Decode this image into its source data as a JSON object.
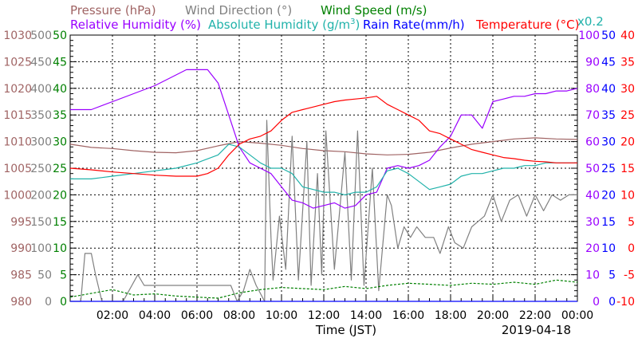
{
  "chart_data": {
    "type": "line",
    "date": "2019-04-18",
    "xlabel": "Time (JST)",
    "x_ticks": [
      "02:00",
      "04:00",
      "06:00",
      "08:00",
      "10:00",
      "12:00",
      "14:00",
      "16:00",
      "18:00",
      "20:00",
      "22:00",
      "00:00"
    ],
    "x_range_hours": [
      0,
      24
    ],
    "scale_note": "x0.2",
    "legend": {
      "pressure": "Pressure (hPa)",
      "wind_direction": "Wind Direction (°)",
      "wind_speed": "Wind Speed (m/s)",
      "relative_humidity": "Relative Humidity (%)",
      "absolute_humidity_prefix": "Absolute Humidity (g/m",
      "absolute_humidity_sup": "3",
      "absolute_humidity_suffix": ")",
      "rain_rate": "Rain Rate(mm/h)",
      "temperature": "Temperature (°C)"
    },
    "axes": {
      "pressure": {
        "color": "#a06464",
        "ticks": [
          "980",
          "985",
          "990",
          "995",
          "1000",
          "1005",
          "1010",
          "1015",
          "1020",
          "1025",
          "1030"
        ],
        "range": [
          980,
          1030
        ]
      },
      "wind_direction": {
        "color": "#808080",
        "ticks": [
          "0",
          "50",
          "100",
          "150",
          "200",
          "250",
          "300",
          "350",
          "400",
          "450",
          "500"
        ],
        "range": [
          0,
          500
        ]
      },
      "wind_speed": {
        "color": "#008000",
        "ticks": [
          "0",
          "5",
          "10",
          "15",
          "20",
          "25",
          "30",
          "35",
          "40",
          "45",
          "50"
        ],
        "range": [
          0,
          50
        ]
      },
      "relative_humidity": {
        "color": "#9a00ff",
        "ticks": [
          "0",
          "10",
          "20",
          "30",
          "40",
          "50",
          "60",
          "70",
          "80",
          "90",
          "100"
        ],
        "range": [
          0,
          100
        ]
      },
      "rain_rate": {
        "color": "#0000ff",
        "ticks": [
          "0",
          "5",
          "10",
          "15",
          "20",
          "25",
          "30",
          "35",
          "40",
          "45",
          "50"
        ],
        "range": [
          0,
          50
        ]
      },
      "temperature": {
        "color": "#ff0000",
        "ticks": [
          "-10",
          "-5",
          "0",
          "5",
          "10",
          "15",
          "20",
          "25",
          "30",
          "35",
          "40"
        ],
        "range": [
          -10,
          40
        ]
      }
    },
    "series": [
      {
        "name": "Pressure (hPa)",
        "color": "#a06464",
        "axis": "pressure",
        "x": [
          0,
          1,
          2,
          3,
          4,
          5,
          6,
          7,
          8,
          9,
          10,
          11,
          12,
          13,
          14,
          15,
          16,
          17,
          18,
          19,
          20,
          21,
          22,
          23,
          24
        ],
        "y": [
          1009.5,
          1008.9,
          1008.7,
          1008.3,
          1008,
          1007.9,
          1008.3,
          1009.2,
          1010,
          1009.7,
          1009.3,
          1008.7,
          1008.3,
          1008.1,
          1007.7,
          1007.5,
          1007.6,
          1008,
          1008.8,
          1009.5,
          1010,
          1010.5,
          1010.7,
          1010.5,
          1010.4
        ]
      },
      {
        "name": "Wind Direction (°)",
        "color": "#808080",
        "axis": "wind_direction",
        "x": [
          0,
          0.5,
          0.7,
          1,
          1.2,
          1.5,
          2.5,
          3.2,
          3.5,
          5,
          6,
          7,
          7.4,
          7.6,
          7.9,
          8.2,
          8.5,
          8.8,
          9.2,
          9.3,
          9.5,
          9.6,
          9.9,
          10.2,
          10.5,
          10.8,
          11.2,
          11.4,
          11.7,
          11.9,
          12.1,
          12.5,
          13,
          13.3,
          13.6,
          13.9,
          14.3,
          14.6,
          15,
          15.2,
          15.5,
          15.8,
          16.1,
          16.4,
          16.8,
          17.2,
          17.5,
          17.9,
          18.2,
          18.6,
          19,
          19.3,
          19.6,
          20,
          20.4,
          20.8,
          21.2,
          21.6,
          22,
          22.4,
          22.8,
          23.2,
          23.6,
          24
        ],
        "y": [
          0,
          0,
          90,
          90,
          50,
          0,
          0,
          50,
          30,
          30,
          30,
          30,
          30,
          30,
          0,
          20,
          60,
          30,
          0,
          340,
          120,
          40,
          160,
          60,
          310,
          40,
          300,
          30,
          240,
          50,
          320,
          60,
          280,
          40,
          320,
          30,
          250,
          20,
          200,
          180,
          100,
          140,
          120,
          140,
          120,
          120,
          90,
          140,
          110,
          100,
          140,
          150,
          160,
          200,
          150,
          190,
          200,
          160,
          200,
          170,
          200,
          190,
          200,
          200
        ]
      },
      {
        "name": "Wind Speed (m/s)",
        "color": "#008000",
        "axis": "wind_speed",
        "x": [
          0,
          1,
          2,
          3,
          4,
          5,
          6,
          7,
          8,
          9,
          10,
          11,
          12,
          13,
          14,
          15,
          16,
          17,
          18,
          19,
          20,
          21,
          22,
          23,
          24
        ],
        "y": [
          0.8,
          1.5,
          2.2,
          1.2,
          1.4,
          1,
          0.8,
          0.6,
          1.6,
          2.2,
          2.6,
          2.4,
          2.2,
          2.8,
          2.4,
          3,
          3.4,
          3.2,
          3,
          3.4,
          3.2,
          3.6,
          3.2,
          4,
          3.6
        ]
      },
      {
        "name": "Relative Humidity (%)",
        "color": "#9a00ff",
        "axis": "relative_humidity",
        "x": [
          0,
          1,
          2,
          3,
          4,
          5,
          5.5,
          6,
          6.5,
          7,
          7.5,
          8,
          8.5,
          9,
          9.5,
          10,
          10.5,
          11,
          11.5,
          12,
          12.5,
          13,
          13.5,
          14,
          14.5,
          15,
          15.5,
          16,
          16.5,
          17,
          17.5,
          18,
          18.5,
          19,
          19.5,
          20,
          20.5,
          21,
          21.5,
          22,
          22.5,
          23,
          23.5,
          24
        ],
        "y": [
          72,
          72,
          75,
          78,
          81,
          85,
          87,
          87,
          87,
          82,
          70,
          58,
          52,
          50,
          48,
          43,
          38,
          37,
          35,
          36,
          37,
          35,
          36,
          40,
          41,
          50,
          51,
          50,
          51,
          53,
          58,
          62,
          70,
          70,
          65,
          75,
          76,
          77,
          77,
          78,
          78,
          79,
          79,
          80
        ]
      },
      {
        "name": "Absolute Humidity (g/m3)",
        "color": "#20b2aa",
        "axis": "relative_humidity",
        "scaled": true,
        "x": [
          0,
          1,
          2,
          3,
          4,
          5,
          6,
          7,
          7.5,
          8,
          8.5,
          9,
          9.5,
          10,
          10.5,
          11,
          11.5,
          12,
          12.5,
          13,
          13.5,
          14,
          14.5,
          15,
          15.5,
          16,
          16.5,
          17,
          17.5,
          18,
          18.5,
          19,
          19.5,
          20,
          20.5,
          21,
          21.5,
          22,
          22.5,
          23,
          23.5,
          24
        ],
        "y": [
          46,
          46,
          47,
          48,
          49,
          50,
          52,
          55,
          59,
          58,
          55,
          52,
          50,
          50,
          48,
          43,
          42,
          41,
          41,
          40,
          41,
          41,
          43,
          49,
          50,
          48,
          45,
          42,
          43,
          44,
          47,
          48,
          48,
          49,
          50,
          50,
          51,
          51,
          52,
          52,
          52,
          52
        ]
      },
      {
        "name": "Rain Rate(mm/h)",
        "color": "#0000ff",
        "axis": "rain_rate",
        "x": [
          0,
          24
        ],
        "y": [
          0,
          0
        ]
      },
      {
        "name": "Temperature (°C)",
        "color": "#ff0000",
        "axis": "temperature",
        "x": [
          0,
          1,
          2,
          3,
          4,
          5,
          6,
          6.5,
          7,
          7.5,
          8,
          8.5,
          9,
          9.5,
          10,
          10.5,
          11,
          11.5,
          12,
          12.5,
          13,
          13.5,
          14,
          14.5,
          15,
          15.5,
          16,
          16.5,
          17,
          17.5,
          18,
          18.5,
          19,
          19.5,
          20,
          20.5,
          21,
          21.5,
          22,
          22.5,
          23,
          23.5,
          24
        ],
        "y": [
          15,
          14.7,
          14.3,
          14,
          13.7,
          13.5,
          13.5,
          14,
          15,
          17.5,
          19.5,
          20.5,
          21,
          22,
          24,
          25.5,
          26,
          26.5,
          27,
          27.5,
          27.8,
          28,
          28.2,
          28.5,
          27,
          26,
          25,
          24,
          22,
          21.5,
          20.5,
          19.5,
          18.5,
          18,
          17.5,
          17,
          16.8,
          16.5,
          16.3,
          16.2,
          16,
          16,
          16
        ]
      }
    ]
  }
}
